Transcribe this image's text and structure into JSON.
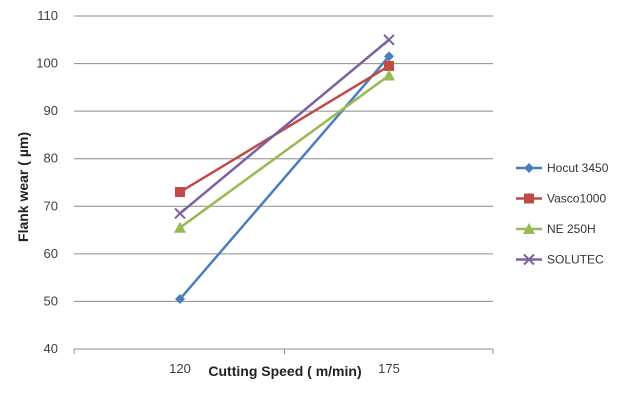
{
  "chart_data": {
    "type": "line",
    "title": "",
    "xlabel": "Cutting Speed ( m/min)",
    "ylabel": "Flank wear ( µm)",
    "categories": [
      "120",
      "175"
    ],
    "ylim": [
      40,
      110
    ],
    "yticks": [
      40,
      50,
      60,
      70,
      80,
      90,
      100,
      110
    ],
    "grid": true,
    "legend_position": "right",
    "series": [
      {
        "name": "Hocut 3450",
        "values": [
          50.5,
          101.5
        ],
        "color": "#4a7ebb",
        "marker": "diamond"
      },
      {
        "name": "Vasco1000",
        "values": [
          73,
          99.5
        ],
        "color": "#be4b48",
        "marker": "square"
      },
      {
        "name": "NE 250H",
        "values": [
          65.5,
          97.5
        ],
        "color": "#98b954",
        "marker": "triangle"
      },
      {
        "name": "SOLUTEC",
        "values": [
          68.5,
          105
        ],
        "color": "#7d60a0",
        "marker": "x"
      }
    ]
  }
}
